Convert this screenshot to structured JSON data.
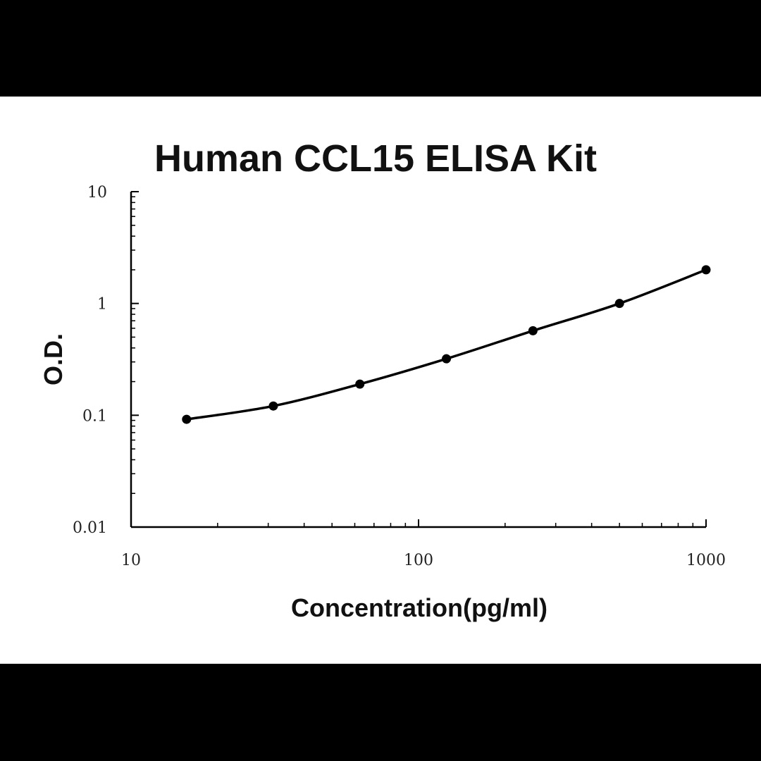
{
  "chart_data": {
    "type": "line",
    "title": "Human CCL15 ELISA Kit",
    "xlabel": "Concentration(pg/ml)",
    "ylabel": "O.D.",
    "x_scale": "log",
    "y_scale": "log",
    "xlim": [
      10,
      1000
    ],
    "ylim": [
      0.01,
      10
    ],
    "x_ticks": [
      10,
      100,
      1000
    ],
    "x_tick_labels": [
      "10",
      "100",
      "1000"
    ],
    "y_ticks": [
      0.01,
      0.1,
      1,
      10
    ],
    "y_tick_labels": [
      "0.01",
      "0.1",
      "1",
      "10"
    ],
    "grid": false,
    "legend": "none",
    "series": [
      {
        "x": [
          15.6,
          31.25,
          62.5,
          125,
          250,
          500,
          1000
        ],
        "y": [
          0.092,
          0.121,
          0.19,
          0.32,
          0.57,
          1.0,
          2.0
        ]
      }
    ],
    "colors": {
      "line": "#000000",
      "marker": "#000000",
      "background": "#ffffff",
      "frame": "#000000"
    }
  }
}
